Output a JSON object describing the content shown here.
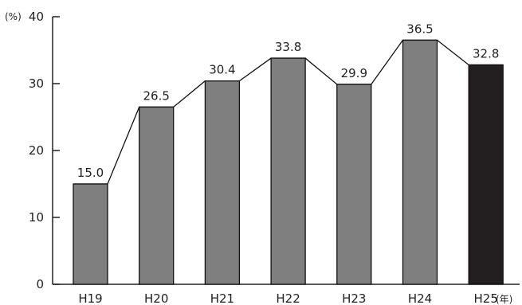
{
  "chart_data": {
    "type": "bar",
    "categories": [
      "H19",
      "H20",
      "H21",
      "H22",
      "H23",
      "H24",
      "H25"
    ],
    "values": [
      15.0,
      26.5,
      30.4,
      33.8,
      29.9,
      36.5,
      32.8
    ],
    "value_labels": [
      "15.0",
      "26.5",
      "30.4",
      "33.8",
      "29.9",
      "36.5",
      "32.8"
    ],
    "y_unit": "(%)",
    "x_unit": "(年)",
    "ylim": [
      0,
      40
    ],
    "yticks": [
      "0",
      "10",
      "20",
      "30",
      "40"
    ],
    "ytick_values": [
      0,
      10,
      20,
      30,
      40
    ],
    "grid": false,
    "connecting_line": true,
    "colors": {
      "bar": "#7f7f7f",
      "bar_highlight": "#231f20",
      "bar_edge": "#111111",
      "line": "#111111"
    }
  }
}
